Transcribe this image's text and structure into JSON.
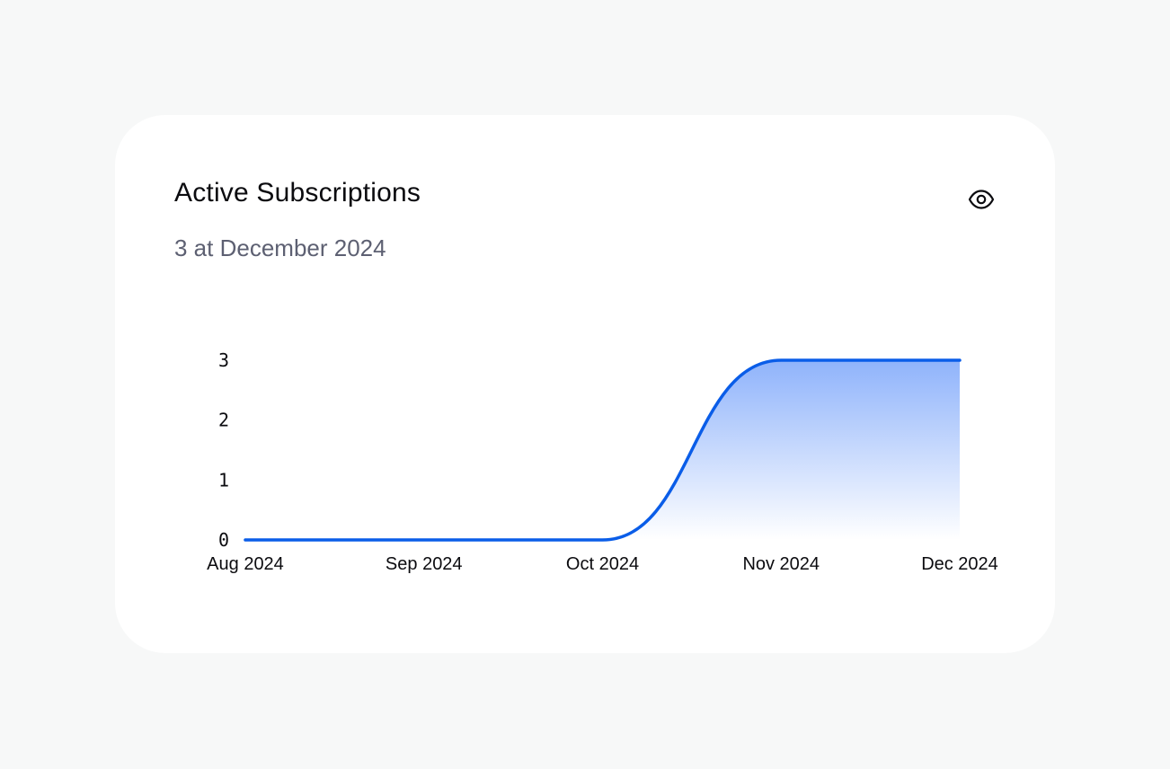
{
  "card": {
    "title": "Active Subscriptions",
    "subtitle": "3 at December 2024"
  },
  "icons": {
    "visibility_toggle": "eye-icon"
  },
  "colors": {
    "line": "#0a5de8",
    "fill_top": "#8fb3fb",
    "fill_bottom": "#ffffff",
    "text": "#0b0b0f",
    "subtitle": "#5d6072"
  },
  "chart_data": {
    "type": "area",
    "title": "",
    "xlabel": "",
    "ylabel": "",
    "x": [
      "Aug 2024",
      "Sep 2024",
      "Oct 2024",
      "Nov 2024",
      "Dec 2024"
    ],
    "series": [
      {
        "values": [
          0,
          0,
          0,
          3,
          3
        ]
      }
    ],
    "yticks": [
      "0",
      "1",
      "2",
      "3"
    ],
    "ylim": [
      0,
      3
    ],
    "grid": false,
    "legend": "none"
  }
}
